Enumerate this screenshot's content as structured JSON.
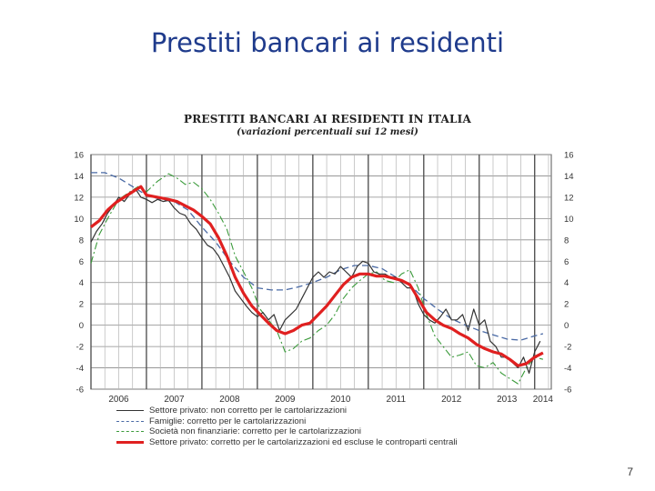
{
  "slide": {
    "title": "Prestiti bancari ai residenti",
    "page_number": "7"
  },
  "chart_data": {
    "type": "line",
    "title": "PRESTITI BANCARI AI RESIDENTI IN ITALIA",
    "subtitle": "(variazioni percentuali sui 12 mesi)",
    "ylim": [
      -6,
      16
    ],
    "yticks": [
      16,
      14,
      12,
      10,
      8,
      6,
      4,
      2,
      0,
      -2,
      -4,
      -6
    ],
    "xlim": [
      2006.0,
      2014.3
    ],
    "year_labels": [
      "2006",
      "2007",
      "2008",
      "2009",
      "2010",
      "2011",
      "2012",
      "2013",
      "2014"
    ],
    "grid": true,
    "legend_position": "bottom",
    "series": [
      {
        "name": "Settore privato: non corretto per le cartolarizzazioni",
        "color": "#333333",
        "style": "solid",
        "x": [
          2006.0,
          2006.1,
          2006.2,
          2006.3,
          2006.4,
          2006.5,
          2006.6,
          2006.7,
          2006.8,
          2006.9,
          2007.0,
          2007.1,
          2007.2,
          2007.3,
          2007.4,
          2007.5,
          2007.6,
          2007.7,
          2007.8,
          2007.9,
          2008.0,
          2008.1,
          2008.2,
          2008.3,
          2008.4,
          2008.5,
          2008.6,
          2008.7,
          2008.8,
          2008.9,
          2009.0,
          2009.1,
          2009.2,
          2009.3,
          2009.4,
          2009.5,
          2009.6,
          2009.7,
          2009.8,
          2009.9,
          2010.0,
          2010.1,
          2010.2,
          2010.3,
          2010.4,
          2010.5,
          2010.6,
          2010.7,
          2010.8,
          2010.9,
          2011.0,
          2011.1,
          2011.2,
          2011.3,
          2011.4,
          2011.5,
          2011.6,
          2011.7,
          2011.8,
          2011.9,
          2012.0,
          2012.1,
          2012.2,
          2012.3,
          2012.4,
          2012.5,
          2012.6,
          2012.7,
          2012.8,
          2012.9,
          2013.0,
          2013.1,
          2013.2,
          2013.3,
          2013.4,
          2013.5,
          2013.6,
          2013.7,
          2013.8,
          2013.9,
          2014.0,
          2014.1
        ],
        "y": [
          7.8,
          8.8,
          9.5,
          10.5,
          11.2,
          12,
          11.6,
          12.3,
          12.8,
          12,
          11.8,
          11.5,
          11.8,
          11.6,
          11.7,
          11,
          10.5,
          10.3,
          9.5,
          9,
          8.2,
          7.5,
          7.2,
          6.5,
          5.5,
          4.5,
          3.2,
          2.5,
          1.8,
          1.2,
          0.8,
          1.2,
          0.5,
          1,
          -0.5,
          0.5,
          1,
          1.5,
          2.5,
          3.5,
          4.5,
          5,
          4.5,
          5,
          4.8,
          5.5,
          5,
          4.5,
          5.5,
          6,
          5.8,
          5,
          4.8,
          4.8,
          4.5,
          4.5,
          4,
          3.5,
          3.5,
          2,
          1,
          0.5,
          0.2,
          0.8,
          1.5,
          0.5,
          0.5,
          1,
          -0.5,
          1.5,
          0,
          0.5,
          -1.5,
          -2,
          -3,
          -3,
          -3.5,
          -4,
          -3,
          -4.5,
          -2.5,
          -1.5
        ]
      },
      {
        "name": "Famiglie: corretto per le cartolarizzazioni",
        "color": "#4a6aa5",
        "style": "dashed",
        "x": [
          2006.0,
          2006.25,
          2006.5,
          2006.75,
          2007.0,
          2007.25,
          2007.5,
          2007.75,
          2008.0,
          2008.25,
          2008.5,
          2008.75,
          2009.0,
          2009.25,
          2009.5,
          2009.75,
          2010.0,
          2010.25,
          2010.5,
          2010.75,
          2011.0,
          2011.25,
          2011.5,
          2011.75,
          2012.0,
          2012.25,
          2012.5,
          2012.75,
          2013.0,
          2013.25,
          2013.5,
          2013.75,
          2014.0,
          2014.15
        ],
        "y": [
          14.3,
          14.3,
          13.8,
          13,
          12.2,
          11.8,
          11.6,
          10.8,
          9.2,
          7.8,
          6,
          4.5,
          3.5,
          3.3,
          3.3,
          3.6,
          4,
          4.5,
          5.2,
          5.6,
          5.6,
          5.3,
          4.5,
          3.8,
          2.5,
          1.5,
          0.6,
          0,
          -0.5,
          -0.9,
          -1.3,
          -1.4,
          -1,
          -0.8
        ]
      },
      {
        "name": "Società non finanziarie: corretto per le cartolarizzazioni",
        "color": "#3a9a3a",
        "style": "dashdot",
        "x": [
          2006.0,
          2006.15,
          2006.3,
          2006.5,
          2006.7,
          2006.85,
          2007.0,
          2007.2,
          2007.4,
          2007.55,
          2007.7,
          2007.85,
          2008.0,
          2008.15,
          2008.3,
          2008.45,
          2008.6,
          2008.75,
          2008.9,
          2009.05,
          2009.2,
          2009.35,
          2009.5,
          2009.65,
          2009.8,
          2009.95,
          2010.1,
          2010.25,
          2010.4,
          2010.55,
          2010.7,
          2010.85,
          2011.0,
          2011.15,
          2011.3,
          2011.45,
          2011.6,
          2011.75,
          2011.9,
          2012.05,
          2012.2,
          2012.35,
          2012.5,
          2012.65,
          2012.8,
          2012.95,
          2013.1,
          2013.25,
          2013.4,
          2013.55,
          2013.7,
          2013.85,
          2014.0,
          2014.15
        ],
        "y": [
          5.8,
          8.5,
          10,
          11.8,
          12.5,
          13,
          12.5,
          13.5,
          14.2,
          13.8,
          13.2,
          13.4,
          12.8,
          11.8,
          10.5,
          9,
          6.5,
          5,
          3.5,
          1.5,
          0.5,
          -0.5,
          -2.5,
          -2.2,
          -1.5,
          -1.2,
          -0.5,
          0,
          1,
          2.5,
          3.5,
          4.2,
          4.8,
          5,
          4.2,
          4,
          4.8,
          5.2,
          3.5,
          1,
          -1,
          -2,
          -3,
          -2.8,
          -2.5,
          -3.8,
          -4,
          -3.5,
          -4.5,
          -5,
          -5.5,
          -4,
          -3,
          -3.2
        ]
      },
      {
        "name": "Settore privato: corretto per le cartolarizzazioni ed escluse le controparti centrali",
        "color": "#e02020",
        "style": "solid",
        "x": [
          2006.0,
          2006.15,
          2006.3,
          2006.45,
          2006.6,
          2006.75,
          2006.9,
          2007.0,
          2007.2,
          2007.4,
          2007.55,
          2007.7,
          2007.85,
          2008.0,
          2008.15,
          2008.3,
          2008.45,
          2008.6,
          2008.75,
          2008.9,
          2009.05,
          2009.2,
          2009.35,
          2009.5,
          2009.65,
          2009.8,
          2009.95,
          2010.1,
          2010.25,
          2010.4,
          2010.55,
          2010.7,
          2010.85,
          2011.0,
          2011.15,
          2011.3,
          2011.45,
          2011.6,
          2011.75,
          2011.9,
          2012.05,
          2012.2,
          2012.35,
          2012.5,
          2012.65,
          2012.8,
          2012.95,
          2013.1,
          2013.25,
          2013.4,
          2013.55,
          2013.7,
          2013.85,
          2014.0,
          2014.15
        ],
        "y": [
          9.2,
          9.8,
          10.8,
          11.5,
          12,
          12.5,
          13,
          12.2,
          12,
          11.8,
          11.6,
          11.2,
          10.8,
          10.2,
          9.5,
          8.2,
          6.5,
          4.5,
          3,
          1.8,
          1,
          0.2,
          -0.5,
          -0.8,
          -0.5,
          0,
          0.2,
          1,
          1.8,
          2.8,
          3.8,
          4.5,
          4.8,
          4.8,
          4.6,
          4.6,
          4.4,
          4.2,
          3.8,
          2.5,
          1.2,
          0.5,
          0,
          -0.3,
          -0.8,
          -1.2,
          -1.8,
          -2.2,
          -2.5,
          -2.7,
          -3.2,
          -3.8,
          -3.6,
          -3,
          -2.6
        ]
      }
    ]
  }
}
